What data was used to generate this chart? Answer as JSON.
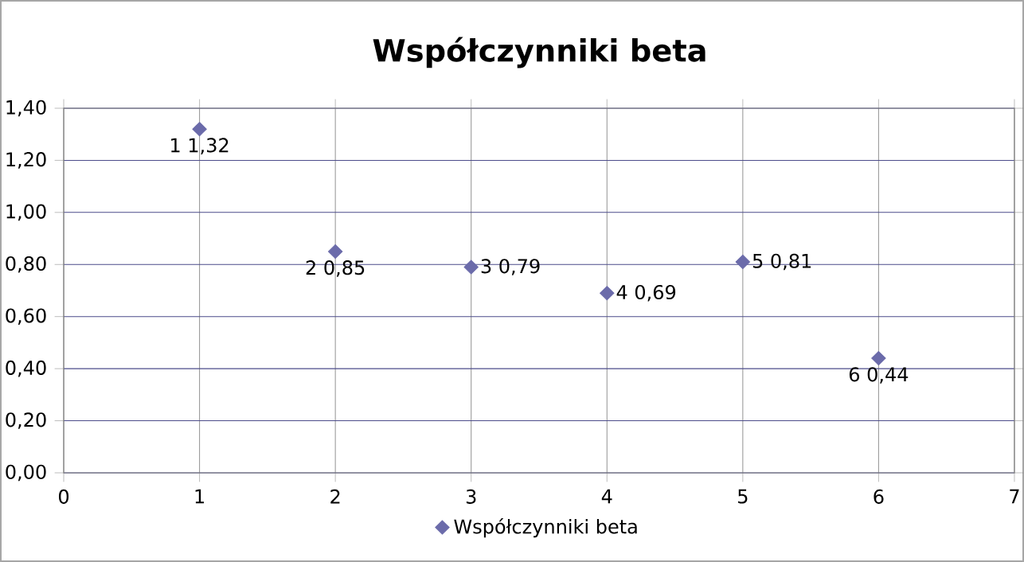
{
  "chart_data": {
    "type": "scatter",
    "title": "Współczynniki beta",
    "x": [
      1,
      2,
      3,
      4,
      5,
      6
    ],
    "series": [
      {
        "name": "Współczynniki beta",
        "color": "#6b6baa",
        "values": [
          1.32,
          0.85,
          0.79,
          0.69,
          0.81,
          0.44
        ],
        "value_labels": [
          "1 1,32",
          "2 0,85",
          "3 0,79",
          "4 0,69",
          "5 0,81",
          "6 0,44"
        ]
      }
    ],
    "xlim": [
      0,
      7
    ],
    "xticks": [
      0,
      1,
      2,
      3,
      4,
      5,
      6,
      7
    ],
    "ylim": [
      0,
      1.4
    ],
    "yticks": [
      {
        "value": 0,
        "label": "0,00"
      },
      {
        "value": 0.2,
        "label": "0,20"
      },
      {
        "value": 0.4,
        "label": "0,40"
      },
      {
        "value": 0.6,
        "label": "0,60"
      },
      {
        "value": 0.8,
        "label": "0,80"
      },
      {
        "value": 1.0,
        "label": "1,00"
      },
      {
        "value": 1.2,
        "label": "1,20"
      },
      {
        "value": 1.4,
        "label": "1,40"
      }
    ],
    "grid": true,
    "legend": "bottom",
    "marker": "diamond"
  }
}
